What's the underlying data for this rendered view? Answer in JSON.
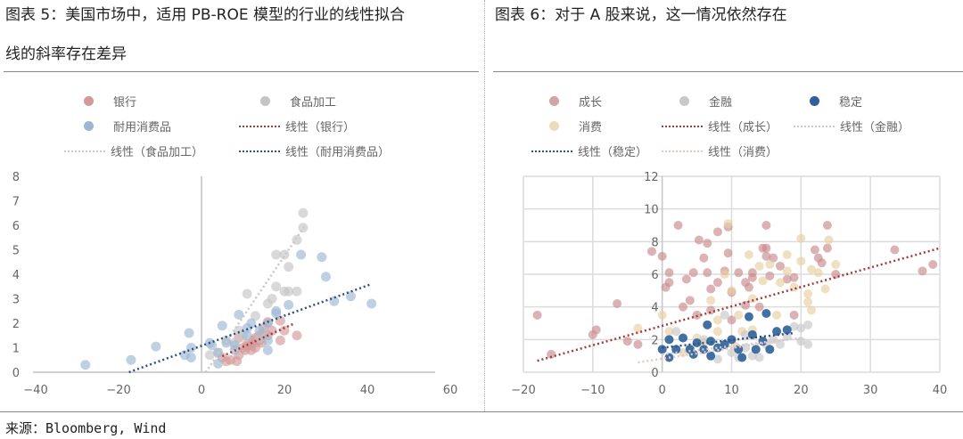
{
  "footer": {
    "source": "来源：Bloomberg, Wind"
  },
  "chart_data": [
    {
      "type": "scatter",
      "title_line1": "图表 5：美国市场中，适用 PB-ROE 模型的行业的线性拟合",
      "title_line2": "线的斜率存在差异",
      "xlim": [
        -40,
        60
      ],
      "ylim": [
        0,
        8
      ],
      "xticks": [
        -40,
        -20,
        0,
        20,
        40,
        60
      ],
      "yticks": [
        0,
        1,
        2,
        3,
        4,
        5,
        6,
        7,
        8
      ],
      "grid": false,
      "legend_position": "top",
      "series": [
        {
          "name": "银行",
          "color": "#d49a9a",
          "points": [
            [
              5,
              0.6
            ],
            [
              6,
              0.45
            ],
            [
              7,
              0.5
            ],
            [
              8.5,
              0.45
            ],
            [
              9,
              0.7
            ],
            [
              10,
              1
            ],
            [
              10.5,
              0.9
            ],
            [
              11,
              1.05
            ],
            [
              11,
              1.15
            ],
            [
              12,
              1.1
            ],
            [
              12,
              0.9
            ],
            [
              13,
              1.2
            ],
            [
              13,
              1.4
            ],
            [
              14,
              1.3
            ],
            [
              14,
              1.5
            ],
            [
              14.5,
              1.2
            ],
            [
              15,
              1.6
            ],
            [
              15,
              1.8
            ],
            [
              16,
              2.05
            ],
            [
              16,
              1.5
            ],
            [
              19,
              2.1
            ],
            [
              19,
              1.3
            ],
            [
              20,
              1.7
            ],
            [
              23,
              1.5
            ],
            [
              13,
              1.0
            ],
            [
              12.5,
              1.3
            ],
            [
              9,
              1.4
            ],
            [
              17,
              1.7
            ]
          ]
        },
        {
          "name": "食品加工",
          "color": "#c4c4c4",
          "points": [
            [
              2,
              0.7
            ],
            [
              4,
              0.8
            ],
            [
              9,
              1.7
            ],
            [
              11,
              3.2
            ],
            [
              13,
              2.3
            ],
            [
              15,
              1.7
            ],
            [
              16,
              2.8
            ],
            [
              17,
              3.0
            ],
            [
              18,
              3.5
            ],
            [
              18,
              4.8
            ],
            [
              20,
              4.8
            ],
            [
              20,
              3.3
            ],
            [
              21,
              3.3
            ],
            [
              21,
              4.3
            ],
            [
              23,
              3.3
            ],
            [
              23,
              5.4
            ],
            [
              24.5,
              5.9
            ],
            [
              24.5,
              6.5
            ],
            [
              14,
              1.4
            ],
            [
              10,
              1.5
            ],
            [
              8,
              1.2
            ],
            [
              6,
              1.3
            ]
          ]
        },
        {
          "name": "耐用消费品",
          "color": "#9db7d2",
          "points": [
            [
              -28,
              0.3
            ],
            [
              -17,
              0.5
            ],
            [
              -11,
              1.05
            ],
            [
              -4,
              0.7
            ],
            [
              -3,
              1.6
            ],
            [
              -2.5,
              1.0
            ],
            [
              -2.5,
              0.6
            ],
            [
              2,
              1.2
            ],
            [
              2.5,
              1.1
            ],
            [
              4,
              0.8
            ],
            [
              4,
              0.35
            ],
            [
              5,
              1.9
            ],
            [
              6,
              1.2
            ],
            [
              8,
              0.9
            ],
            [
              8,
              1.1
            ],
            [
              9,
              2.35
            ],
            [
              11,
              1.8
            ],
            [
              11,
              1.5
            ],
            [
              12,
              2.0
            ],
            [
              14,
              1.7
            ],
            [
              16,
              2.0
            ],
            [
              16,
              1.3
            ],
            [
              16,
              0.9
            ],
            [
              18,
              2.5
            ],
            [
              18,
              2.4
            ],
            [
              21,
              2.75
            ],
            [
              24,
              4.8
            ],
            [
              29,
              4.7
            ],
            [
              30,
              3.9
            ],
            [
              32,
              2.9
            ],
            [
              36,
              3.1
            ],
            [
              41,
              2.8
            ]
          ]
        }
      ],
      "trendlines": [
        {
          "name": "线性（银行）",
          "color": "#a33a3a",
          "from": [
            5,
            0.65
          ],
          "to": [
            22.5,
            2.0
          ]
        },
        {
          "name": "线性（食品加工）",
          "color": "#c8c8c8",
          "from": [
            1,
            0
          ],
          "to": [
            25,
            6
          ]
        },
        {
          "name": "线性（耐用消费品）",
          "color": "#2f4f80",
          "from": [
            -17.5,
            0
          ],
          "to": [
            41,
            3.6
          ]
        }
      ]
    },
    {
      "type": "scatter",
      "title_line1": "图表 6：对于 A 股来说，这一情况依然存在",
      "xlim": [
        -20,
        40
      ],
      "ylim": [
        0,
        12
      ],
      "xticks": [
        -20,
        -10,
        0,
        10,
        20,
        30,
        40
      ],
      "yticks": [
        0,
        2,
        4,
        6,
        8,
        10,
        12
      ],
      "grid": true,
      "legend_position": "top",
      "series": [
        {
          "name": "成长",
          "color": "#c98a8e",
          "points": [
            [
              -18,
              3.5
            ],
            [
              -16,
              1.1
            ],
            [
              -10,
              2.3
            ],
            [
              -9.5,
              2.6
            ],
            [
              -6.5,
              4.2
            ],
            [
              -5,
              1.9
            ],
            [
              -3.5,
              1.7
            ],
            [
              -1.5,
              7.4
            ],
            [
              0,
              7.1
            ],
            [
              0.5,
              5.2
            ],
            [
              1,
              5.5
            ],
            [
              1,
              6.1
            ],
            [
              2.3,
              9
            ],
            [
              3,
              4
            ],
            [
              3.5,
              5.7
            ],
            [
              4,
              4.4
            ],
            [
              4.5,
              6.1
            ],
            [
              5.3,
              8.1
            ],
            [
              6,
              7
            ],
            [
              6.5,
              7.9
            ],
            [
              6.5,
              6.1
            ],
            [
              7,
              5.1
            ],
            [
              8,
              8.6
            ],
            [
              8,
              5.5
            ],
            [
              9,
              6.2
            ],
            [
              9.5,
              7.3
            ],
            [
              9.5,
              8.9
            ],
            [
              10,
              4.9
            ],
            [
              11,
              6.1
            ],
            [
              12,
              5.5
            ],
            [
              12.5,
              5.2
            ],
            [
              13,
              6.1
            ],
            [
              13,
              5.8
            ],
            [
              14.5,
              7.6
            ],
            [
              15,
              9
            ],
            [
              15,
              7.6
            ],
            [
              15,
              7.1
            ],
            [
              15.5,
              5.9
            ],
            [
              16,
              7
            ],
            [
              17,
              6.5
            ],
            [
              18,
              5.7
            ],
            [
              19,
              5.8
            ],
            [
              19,
              3.5
            ],
            [
              22,
              7.5
            ],
            [
              22.5,
              7
            ],
            [
              23,
              6.7
            ],
            [
              23.8,
              9
            ],
            [
              23.8,
              7.6
            ],
            [
              25,
              6
            ],
            [
              33.5,
              7.5
            ],
            [
              37.5,
              6.2
            ],
            [
              39,
              6.6
            ],
            [
              5,
              3.5
            ],
            [
              7,
              3.8
            ],
            [
              10,
              3.2
            ],
            [
              12,
              4.1
            ],
            [
              14,
              4
            ]
          ]
        },
        {
          "name": "消费",
          "color": "#e6cfa2",
          "points": [
            [
              -3.5,
              2.7
            ],
            [
              0,
              3.5
            ],
            [
              1,
              2.5
            ],
            [
              3,
              1.2
            ],
            [
              5,
              2.1
            ],
            [
              7,
              4.4
            ],
            [
              8,
              2.5
            ],
            [
              9,
              6
            ],
            [
              9.5,
              9.1
            ],
            [
              10,
              5
            ],
            [
              11,
              3.5
            ],
            [
              11.5,
              2.5
            ],
            [
              12.5,
              7.2
            ],
            [
              13,
              4.5
            ],
            [
              14,
              6.5
            ],
            [
              14.5,
              5.6
            ],
            [
              15.5,
              6.6
            ],
            [
              16.5,
              3.5
            ],
            [
              17,
              5.5
            ],
            [
              18,
              7.2
            ],
            [
              18,
              6.2
            ],
            [
              19,
              5.2
            ],
            [
              20,
              8.2
            ],
            [
              20,
              6.8
            ],
            [
              21,
              4.8
            ],
            [
              21,
              4.3
            ],
            [
              21.5,
              6.3
            ],
            [
              21.5,
              3.8
            ],
            [
              22.5,
              6.1
            ],
            [
              23.5,
              5.1
            ],
            [
              24,
              8.1
            ],
            [
              25,
              6.6
            ],
            [
              6,
              1.8
            ],
            [
              8,
              3.2
            ],
            [
              10.5,
              1.6
            ],
            [
              13,
              2.6
            ]
          ]
        },
        {
          "name": "金融",
          "color": "#c6c6c6",
          "points": [
            [
              2,
              2.5
            ],
            [
              4,
              1.5
            ],
            [
              6,
              2
            ],
            [
              8,
              0.8
            ],
            [
              9,
              3.5
            ],
            [
              10,
              1.2
            ],
            [
              11,
              0.9
            ],
            [
              12,
              1.5
            ],
            [
              13,
              1
            ],
            [
              14,
              0.9
            ],
            [
              15,
              1.7
            ],
            [
              16,
              2
            ],
            [
              17,
              1.7
            ],
            [
              18,
              2.2
            ],
            [
              19,
              2.8
            ],
            [
              20,
              2.7
            ],
            [
              20,
              1.9
            ],
            [
              21,
              2.9
            ],
            [
              21,
              1.7
            ],
            [
              12,
              2.3
            ]
          ]
        },
        {
          "name": "稳定",
          "color": "#2e6098",
          "points": [
            [
              0,
              1.4
            ],
            [
              1,
              0.9
            ],
            [
              1,
              2
            ],
            [
              2,
              1.4
            ],
            [
              3,
              2.1
            ],
            [
              4,
              1.4
            ],
            [
              4.5,
              1.1
            ],
            [
              5,
              1.8
            ],
            [
              6,
              1.4
            ],
            [
              6.5,
              2.9
            ],
            [
              7,
              1
            ],
            [
              7,
              1.9
            ],
            [
              8,
              1.5
            ],
            [
              9,
              1.7
            ],
            [
              10,
              2
            ],
            [
              11,
              1.4
            ],
            [
              11.5,
              0.9
            ],
            [
              12.5,
              3.4
            ],
            [
              13,
              2.3
            ],
            [
              13.5,
              1.4
            ],
            [
              14.5,
              1.9
            ],
            [
              15,
              3.6
            ],
            [
              15.5,
              1.4
            ],
            [
              16.5,
              2.5
            ],
            [
              18,
              2.6
            ]
          ]
        }
      ],
      "trendlines": [
        {
          "name": "线性（成长）",
          "color": "#a33a3a",
          "from": [
            -18,
            0.7
          ],
          "to": [
            40,
            7.6
          ]
        },
        {
          "name": "线性（金融）",
          "color": "#cfcfcf",
          "from": [
            0,
            1.1
          ],
          "to": [
            20,
            2.1
          ]
        },
        {
          "name": "线性（稳定）",
          "color": "#2f4f80",
          "from": [
            0,
            1.5
          ],
          "to": [
            19,
            2.4
          ]
        },
        {
          "name": "线性（消费）",
          "color": "#e8c4c4",
          "from": [
            -3.5,
            0.6
          ],
          "to": [
            18,
            2.0
          ]
        }
      ]
    }
  ]
}
